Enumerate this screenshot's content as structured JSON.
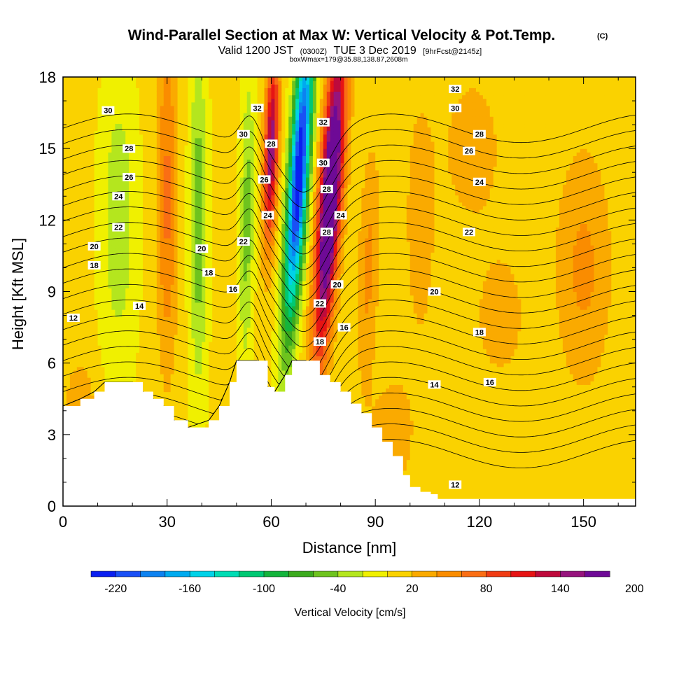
{
  "chart_data": {
    "type": "contour-cross-section",
    "title": "Wind-Parallel Section at Max W: Vertical Velocity & Pot.Temp.",
    "title_mark": "(C)",
    "subtitle": {
      "valid": "Valid 1200 JST",
      "utc": "(0300Z)",
      "date": "TUE 3 Dec 2019",
      "fcst": "[9hrFcst@2145z]"
    },
    "box_info": "boxWmax=179@35.88,138.87,2608m",
    "xlabel": "Distance [nm]",
    "ylabel": "Height [Kft MSL]",
    "xlim": [
      0,
      165
    ],
    "ylim": [
      0,
      18
    ],
    "x_ticks": [
      0,
      30,
      60,
      90,
      120,
      150
    ],
    "y_ticks": [
      0,
      3,
      6,
      9,
      12,
      15,
      18
    ],
    "colorbar": {
      "title": "Vertical Velocity [cm/s]",
      "labels": [
        "-220",
        "-160",
        "-100",
        "-40",
        "20",
        "80",
        "140",
        "200"
      ],
      "label_values": [
        -220,
        -160,
        -100,
        -40,
        20,
        80,
        140,
        200
      ],
      "min": -240,
      "step": 20,
      "colors": [
        "#0a1ff0",
        "#1a50f5",
        "#0d82f0",
        "#00aaef",
        "#00d2e8",
        "#00dcb4",
        "#00c873",
        "#14b43c",
        "#3caa1e",
        "#6ec31e",
        "#b4e61e",
        "#f0f000",
        "#fad200",
        "#faaa00",
        "#fa8c00",
        "#fa6e14",
        "#f03c14",
        "#e61414",
        "#be0a3c",
        "#96147d",
        "#6e0a96"
      ]
    },
    "terrain": [
      [
        0,
        4.2
      ],
      [
        5,
        4.5
      ],
      [
        9,
        4.8
      ],
      [
        12,
        5.2
      ],
      [
        18,
        5.2
      ],
      [
        20,
        5.2
      ],
      [
        23,
        4.8
      ],
      [
        26,
        4.5
      ],
      [
        29,
        4.2
      ],
      [
        32,
        3.6
      ],
      [
        36,
        3.3
      ],
      [
        42,
        3.6
      ],
      [
        45,
        4.2
      ],
      [
        48,
        5.2
      ],
      [
        50,
        6.1
      ],
      [
        56,
        6.1
      ],
      [
        59,
        5.0
      ],
      [
        61,
        4.8
      ],
      [
        64,
        5.5
      ],
      [
        66,
        6.1
      ],
      [
        70,
        6.1
      ],
      [
        74,
        5.5
      ],
      [
        77,
        5.2
      ],
      [
        80,
        4.8
      ],
      [
        83,
        4.3
      ],
      [
        86,
        3.9
      ],
      [
        89,
        3.3
      ],
      [
        92,
        2.7
      ],
      [
        95,
        2.1
      ],
      [
        98,
        1.3
      ],
      [
        100,
        0.8
      ],
      [
        103,
        0.6
      ],
      [
        106,
        0.5
      ],
      [
        108,
        0.3
      ],
      [
        165,
        0.3
      ]
    ],
    "w_features": [
      {
        "x": 68,
        "y": 14,
        "sx": 2.8,
        "sy": 6.5,
        "amp": -250,
        "tilt": 0.45
      },
      {
        "x": 77,
        "y": 13,
        "sx": 3.2,
        "sy": 6.5,
        "amp": 220,
        "tilt": 0.45
      },
      {
        "x": 60,
        "y": 15,
        "sx": 2.0,
        "sy": 4.0,
        "amp": 150,
        "tilt": 0.2
      },
      {
        "x": 30,
        "y": 13,
        "sx": 3.0,
        "sy": 7.0,
        "amp": 60,
        "tilt": 0.0
      },
      {
        "x": 39,
        "y": 12,
        "sx": 2.5,
        "sy": 7.0,
        "amp": -60,
        "tilt": 0.0
      },
      {
        "x": 16,
        "y": 12,
        "sx": 5.0,
        "sy": 6.0,
        "amp": -40,
        "tilt": 0.0
      },
      {
        "x": 53,
        "y": 12,
        "sx": 2.0,
        "sy": 6.0,
        "amp": -55,
        "tilt": 0.1
      },
      {
        "x": 88,
        "y": 10,
        "sx": 3.0,
        "sy": 5.0,
        "amp": 40,
        "tilt": 0.2
      },
      {
        "x": 103,
        "y": 12,
        "sx": 5.0,
        "sy": 6.0,
        "amp": 25,
        "tilt": 0.0
      },
      {
        "x": 118,
        "y": 15,
        "sx": 8.0,
        "sy": 3.0,
        "amp": 30,
        "tilt": 0.0
      },
      {
        "x": 150,
        "y": 10,
        "sx": 8.0,
        "sy": 5.0,
        "amp": 40,
        "tilt": 0.0
      },
      {
        "x": 95,
        "y": 3,
        "sx": 6.0,
        "sy": 2.5,
        "amp": 30,
        "tilt": 0.0
      },
      {
        "x": 5,
        "y": 4.5,
        "sx": 4.0,
        "sy": 1.5,
        "amp": 35,
        "tilt": 0.0
      },
      {
        "x": 126,
        "y": 8,
        "sx": 8.0,
        "sy": 3.0,
        "amp": 25,
        "tilt": 0.0
      }
    ],
    "theta_levels": [
      12,
      13,
      14,
      15,
      16,
      17,
      18,
      19,
      20,
      21,
      22,
      23,
      24,
      25,
      26,
      27,
      28,
      29,
      30,
      31,
      32,
      33
    ],
    "contour_labels": [
      {
        "text": "30",
        "x": 13,
        "y": 16.6
      },
      {
        "text": "28",
        "x": 19,
        "y": 15.0
      },
      {
        "text": "26",
        "x": 19,
        "y": 13.8
      },
      {
        "text": "24",
        "x": 16,
        "y": 13.0
      },
      {
        "text": "22",
        "x": 16,
        "y": 11.7
      },
      {
        "text": "20",
        "x": 9,
        "y": 10.9
      },
      {
        "text": "18",
        "x": 9,
        "y": 10.1
      },
      {
        "text": "14",
        "x": 22,
        "y": 8.4
      },
      {
        "text": "12",
        "x": 3,
        "y": 7.9
      },
      {
        "text": "32",
        "x": 56,
        "y": 16.7
      },
      {
        "text": "30",
        "x": 52,
        "y": 15.6
      },
      {
        "text": "28",
        "x": 60,
        "y": 15.2
      },
      {
        "text": "26",
        "x": 58,
        "y": 13.7
      },
      {
        "text": "24",
        "x": 59,
        "y": 12.2
      },
      {
        "text": "22",
        "x": 52,
        "y": 11.1
      },
      {
        "text": "20",
        "x": 40,
        "y": 10.8
      },
      {
        "text": "18",
        "x": 42,
        "y": 9.8
      },
      {
        "text": "16",
        "x": 49,
        "y": 9.1
      },
      {
        "text": "32",
        "x": 75,
        "y": 16.1
      },
      {
        "text": "30",
        "x": 75,
        "y": 14.4
      },
      {
        "text": "28",
        "x": 76,
        "y": 13.3
      },
      {
        "text": "24",
        "x": 80,
        "y": 12.2
      },
      {
        "text": "28",
        "x": 76,
        "y": 11.5
      },
      {
        "text": "20",
        "x": 79,
        "y": 9.3
      },
      {
        "text": "22",
        "x": 74,
        "y": 8.5
      },
      {
        "text": "16",
        "x": 81,
        "y": 7.5
      },
      {
        "text": "18",
        "x": 74,
        "y": 6.9
      },
      {
        "text": "32",
        "x": 113,
        "y": 17.5
      },
      {
        "text": "30",
        "x": 113,
        "y": 16.7
      },
      {
        "text": "28",
        "x": 120,
        "y": 15.6
      },
      {
        "text": "26",
        "x": 117,
        "y": 14.9
      },
      {
        "text": "24",
        "x": 120,
        "y": 13.6
      },
      {
        "text": "22",
        "x": 117,
        "y": 11.5
      },
      {
        "text": "20",
        "x": 107,
        "y": 9.0
      },
      {
        "text": "18",
        "x": 120,
        "y": 7.3
      },
      {
        "text": "16",
        "x": 123,
        "y": 5.2
      },
      {
        "text": "14",
        "x": 107,
        "y": 5.1
      },
      {
        "text": "12",
        "x": 113,
        "y": 0.9
      }
    ]
  }
}
